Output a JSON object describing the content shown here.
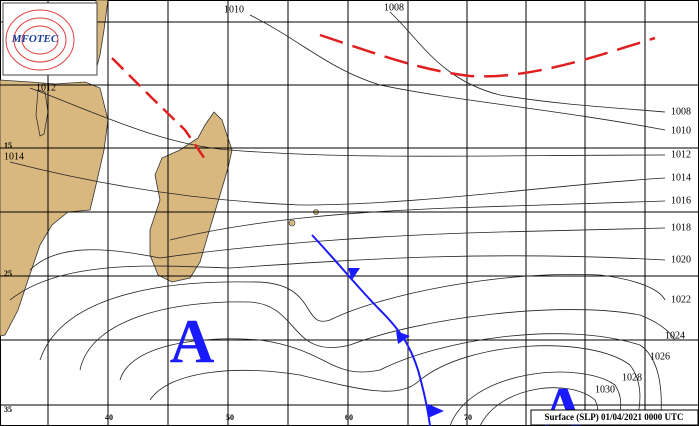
{
  "logo": "MFOTEC",
  "isobars": {
    "top": [
      1010,
      1008
    ],
    "left": [
      1012,
      1014
    ],
    "right": [
      1008,
      1010,
      1012,
      1014,
      1016,
      1018,
      1020,
      1022,
      1024,
      1026,
      1028,
      1030
    ]
  },
  "latitudes": [
    15,
    25,
    35
  ],
  "longitudes": [
    40,
    50,
    60,
    70
  ],
  "highs": [
    "A",
    "A"
  ],
  "caption": "Surface (SLP) 01/04/2021 0000 UTC"
}
